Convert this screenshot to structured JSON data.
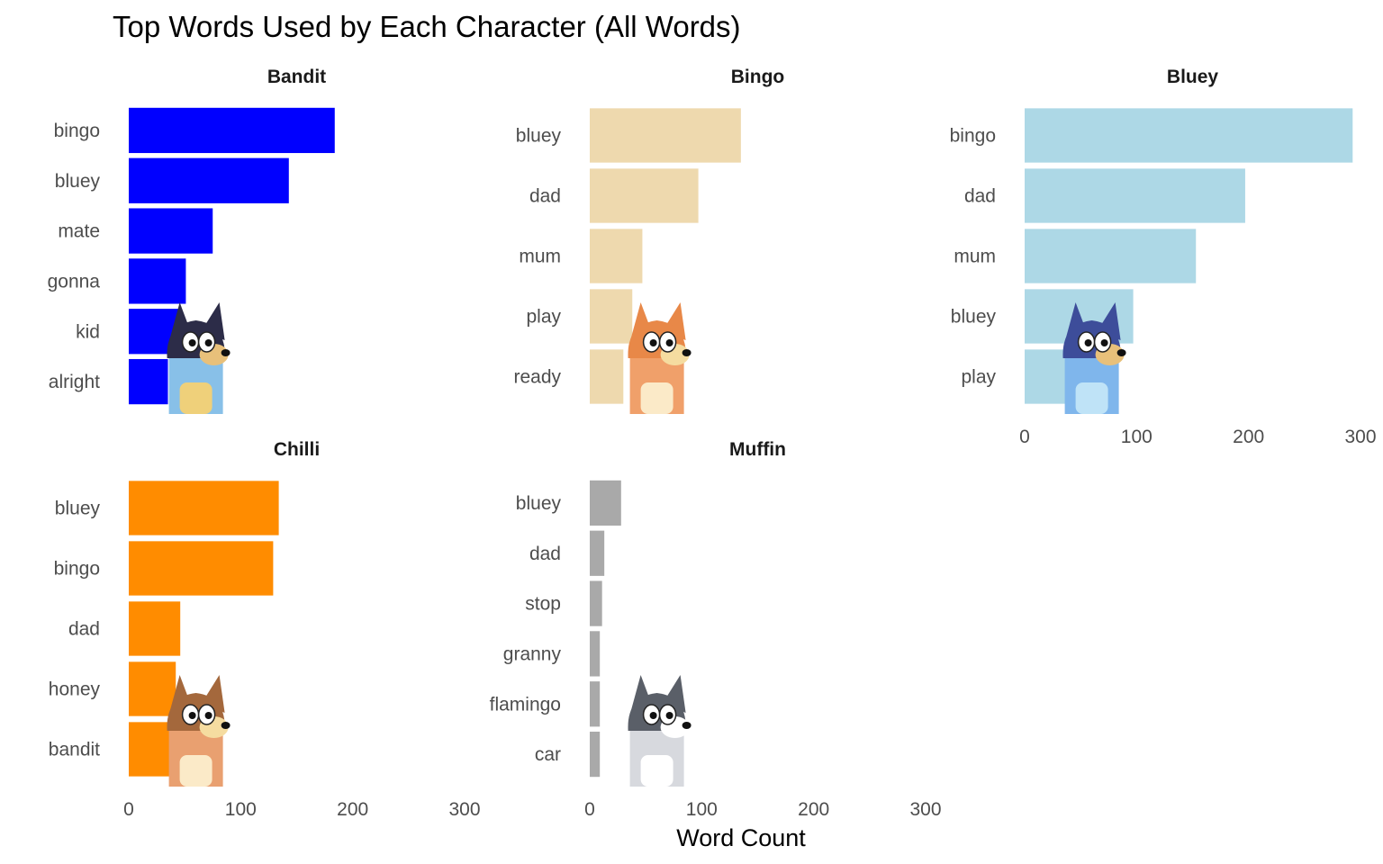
{
  "chart_data": {
    "type": "bar",
    "orientation": "horizontal",
    "title": "Top Words Used by Each Character (All Words)",
    "xlabel": "Word Count",
    "ylabel": "",
    "xlim": [
      0,
      300
    ],
    "xticks": [
      0,
      100,
      200,
      300
    ],
    "grid": false,
    "panels": [
      {
        "name": "Bandit",
        "color": "#0000ff",
        "mascot_icon": "bandit-dog-icon",
        "categories": [
          "bingo",
          "bluey",
          "mate",
          "gonna",
          "kid",
          "alright"
        ],
        "values": [
          184,
          143,
          75,
          51,
          46,
          35
        ]
      },
      {
        "name": "Bingo",
        "color": "#eed9ae",
        "mascot_icon": "bingo-dog-icon",
        "categories": [
          "bluey",
          "dad",
          "mum",
          "play",
          "ready"
        ],
        "values": [
          135,
          97,
          47,
          38,
          30
        ]
      },
      {
        "name": "Bluey",
        "color": "#add8e6",
        "mascot_icon": "bluey-dog-icon",
        "categories": [
          "bingo",
          "dad",
          "mum",
          "bluey",
          "play"
        ],
        "values": [
          293,
          197,
          153,
          97,
          63
        ]
      },
      {
        "name": "Chilli",
        "color": "#ff8c00",
        "mascot_icon": "chilli-dog-icon",
        "categories": [
          "bluey",
          "bingo",
          "dad",
          "honey",
          "bandit"
        ],
        "values": [
          134,
          129,
          46,
          42,
          41
        ]
      },
      {
        "name": "Muffin",
        "color": "#a9a9a9",
        "mascot_icon": "muffin-dog-icon",
        "categories": [
          "bluey",
          "dad",
          "stop",
          "granny",
          "flamingo",
          "car"
        ],
        "values": [
          28,
          13,
          11,
          9,
          9,
          9
        ]
      }
    ]
  }
}
